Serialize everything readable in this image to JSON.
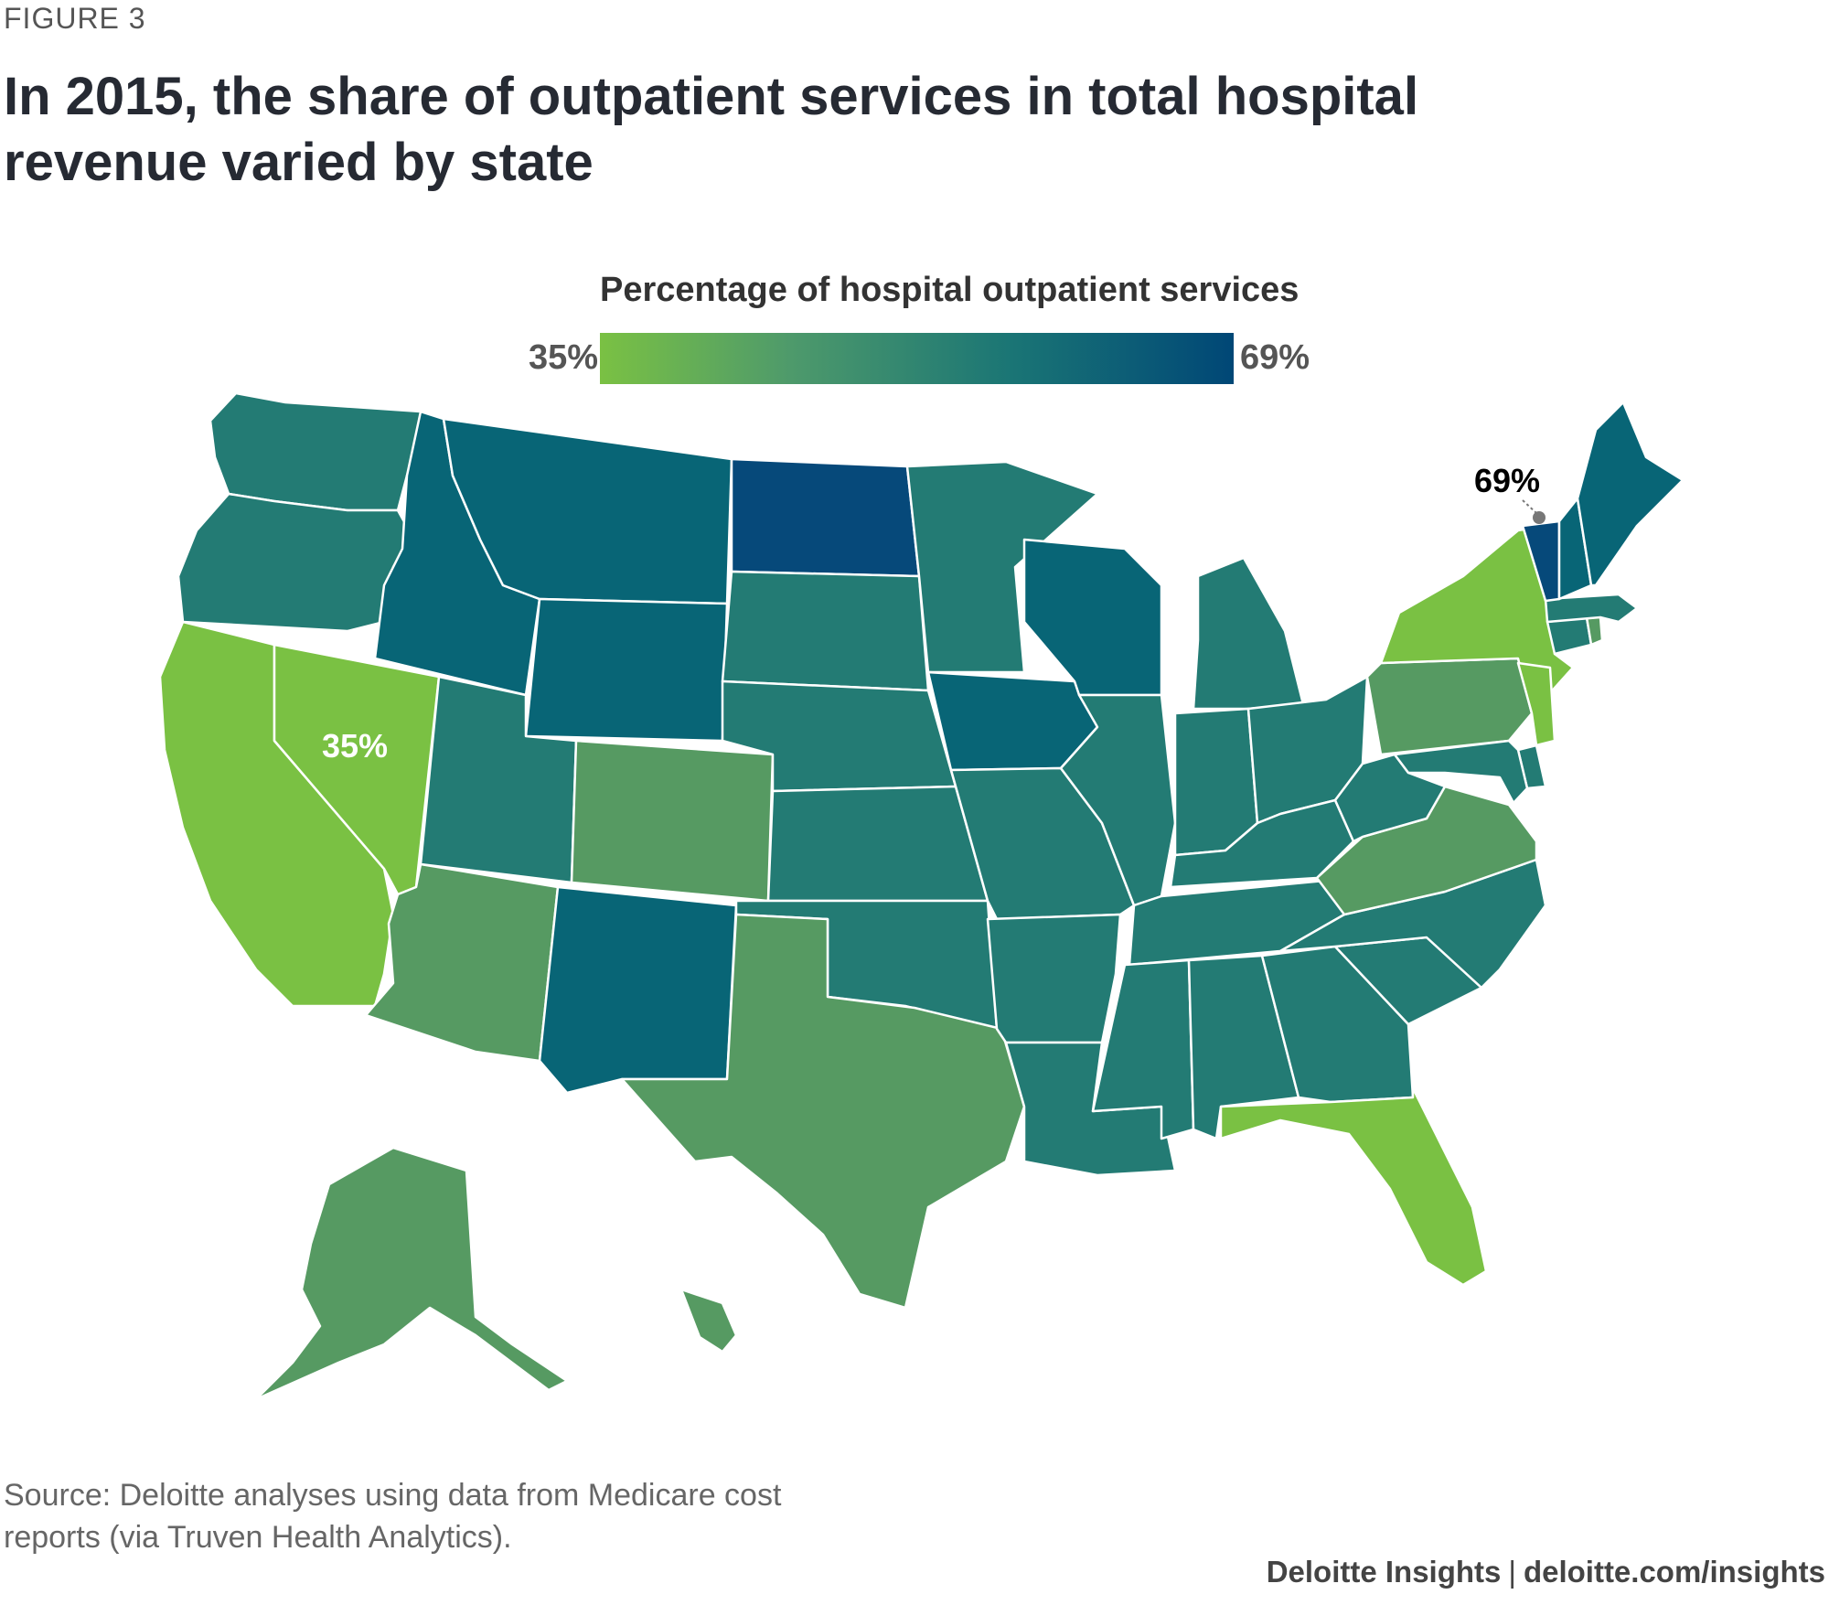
{
  "figure_label": "FIGURE 3",
  "title": "In 2015, the share of outpatient services in total hospital revenue varied by state",
  "chart_data": {
    "type": "choropleth",
    "title": "In 2015, the share of outpatient services in total hospital revenue varied by state",
    "legend": {
      "title": "Percentage of hospital outpatient services",
      "min": 35,
      "max": 69,
      "min_label": "35%",
      "max_label": "69%"
    },
    "annotations": [
      {
        "state": "NV",
        "label": "35%"
      },
      {
        "state": "VT",
        "label": "69%"
      }
    ],
    "unit": "%",
    "colors": {
      "light": "#7ac143",
      "mid_light": "#569a62",
      "mid": "#237b74",
      "mid_dark": "#086576",
      "dark": "#06497a",
      "border": "#ffffff"
    },
    "states": [
      {
        "state": "WA",
        "band": "mid"
      },
      {
        "state": "OR",
        "band": "mid"
      },
      {
        "state": "CA",
        "band": "light"
      },
      {
        "state": "NV",
        "band": "light"
      },
      {
        "state": "ID",
        "band": "mid_dark"
      },
      {
        "state": "MT",
        "band": "mid_dark"
      },
      {
        "state": "WY",
        "band": "mid_dark"
      },
      {
        "state": "UT",
        "band": "mid"
      },
      {
        "state": "AZ",
        "band": "mid_light"
      },
      {
        "state": "CO",
        "band": "mid_light"
      },
      {
        "state": "NM",
        "band": "mid_dark"
      },
      {
        "state": "ND",
        "band": "dark"
      },
      {
        "state": "SD",
        "band": "mid"
      },
      {
        "state": "NE",
        "band": "mid"
      },
      {
        "state": "KS",
        "band": "mid"
      },
      {
        "state": "OK",
        "band": "mid"
      },
      {
        "state": "TX",
        "band": "mid_light"
      },
      {
        "state": "MN",
        "band": "mid"
      },
      {
        "state": "IA",
        "band": "mid_dark"
      },
      {
        "state": "MO",
        "band": "mid"
      },
      {
        "state": "AR",
        "band": "mid"
      },
      {
        "state": "LA",
        "band": "mid"
      },
      {
        "state": "WI",
        "band": "mid_dark"
      },
      {
        "state": "IL",
        "band": "mid"
      },
      {
        "state": "MI",
        "band": "mid"
      },
      {
        "state": "IN",
        "band": "mid"
      },
      {
        "state": "OH",
        "band": "mid"
      },
      {
        "state": "KY",
        "band": "mid"
      },
      {
        "state": "TN",
        "band": "mid"
      },
      {
        "state": "MS",
        "band": "mid"
      },
      {
        "state": "AL",
        "band": "mid"
      },
      {
        "state": "GA",
        "band": "mid"
      },
      {
        "state": "FL",
        "band": "light"
      },
      {
        "state": "SC",
        "band": "mid"
      },
      {
        "state": "NC",
        "band": "mid"
      },
      {
        "state": "VA",
        "band": "mid_light"
      },
      {
        "state": "WV",
        "band": "mid"
      },
      {
        "state": "PA",
        "band": "mid_light"
      },
      {
        "state": "NY",
        "band": "light"
      },
      {
        "state": "NJ",
        "band": "light"
      },
      {
        "state": "DE",
        "band": "mid"
      },
      {
        "state": "MD",
        "band": "mid"
      },
      {
        "state": "CT",
        "band": "mid"
      },
      {
        "state": "RI",
        "band": "mid_light"
      },
      {
        "state": "MA",
        "band": "mid"
      },
      {
        "state": "VT",
        "band": "dark"
      },
      {
        "state": "NH",
        "band": "mid_dark"
      },
      {
        "state": "ME",
        "band": "mid_dark"
      },
      {
        "state": "AK",
        "band": "mid_light"
      },
      {
        "state": "HI",
        "band": "mid_light"
      }
    ]
  },
  "source": "Source: Deloitte analyses using data from Medicare cost reports (via Truven Health Analytics).",
  "credit": {
    "brand": "Deloitte Insights",
    "separator": "|",
    "url": "deloitte.com/insights"
  }
}
